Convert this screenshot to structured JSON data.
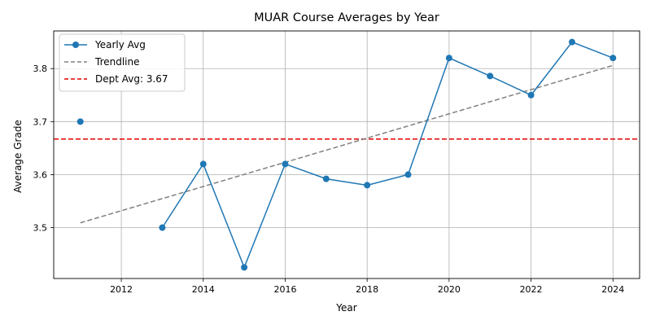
{
  "chart_data": {
    "type": "line",
    "title": "MUAR Course Averages by Year",
    "xlabel": "Year",
    "ylabel": "Average Grade",
    "xlim": [
      2010.35,
      2024.65
    ],
    "ylim": [
      3.404,
      3.871
    ],
    "x_ticks": [
      2012,
      2014,
      2016,
      2018,
      2020,
      2022,
      2024
    ],
    "y_ticks": [
      3.5,
      3.6,
      3.7,
      3.8
    ],
    "grid": true,
    "legend_position": "top-left",
    "series": [
      {
        "name": "Yearly Avg",
        "kind": "line-markers",
        "color": "#1f77b4",
        "x": [
          2011,
          2013,
          2014,
          2015,
          2016,
          2017,
          2018,
          2019,
          2020,
          2021,
          2022,
          2023,
          2024
        ],
        "y": [
          3.7,
          3.5,
          3.62,
          3.425,
          3.62,
          3.592,
          3.58,
          3.6,
          3.82,
          3.786,
          3.75,
          3.85,
          3.82
        ],
        "connected_from_index": 1
      },
      {
        "name": "Trendline",
        "kind": "dashed-line",
        "color": "#808080",
        "x": [
          2011,
          2024
        ],
        "y": [
          3.509,
          3.806
        ]
      },
      {
        "name": "Dept Avg: 3.67",
        "kind": "horizontal-dashed",
        "color": "#e00000",
        "y": 3.667
      }
    ]
  }
}
